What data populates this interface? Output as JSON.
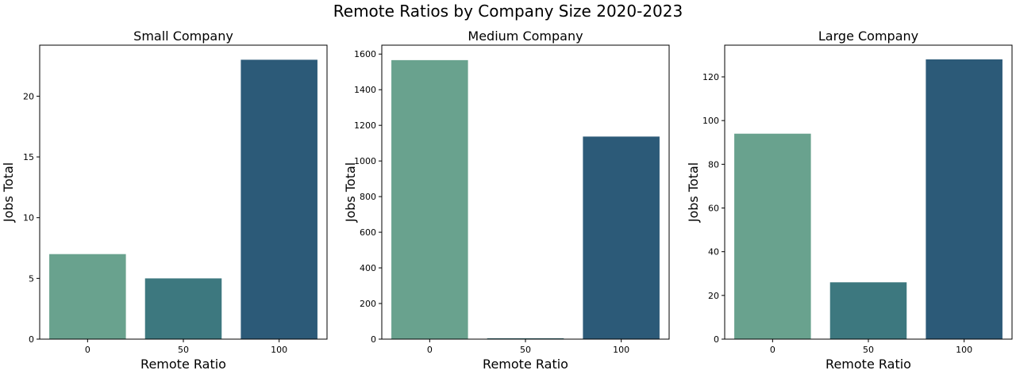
{
  "figure": {
    "title": "Remote Ratios by Company Size 2020-2023"
  },
  "colors": {
    "0": "#69a28e",
    "50": "#3d787f",
    "100": "#2c5a78"
  },
  "chart_data": [
    {
      "type": "bar",
      "title": "Small Company",
      "xlabel": "Remote Ratio",
      "ylabel": "Jobs Total",
      "categories": [
        "0",
        "50",
        "100"
      ],
      "values": [
        7,
        5,
        23
      ],
      "ylim": [
        0,
        24.2
      ],
      "yticks": [
        0,
        5,
        10,
        15,
        20
      ],
      "grid": false
    },
    {
      "type": "bar",
      "title": "Medium Company",
      "xlabel": "Remote Ratio",
      "ylabel": "Jobs Total",
      "categories": [
        "0",
        "50",
        "100"
      ],
      "values": [
        1566,
        5,
        1137
      ],
      "ylim": [
        0,
        1650
      ],
      "yticks": [
        0,
        200,
        400,
        600,
        800,
        1000,
        1200,
        1400,
        1600
      ],
      "grid": false
    },
    {
      "type": "bar",
      "title": "Large Company",
      "xlabel": "Remote Ratio",
      "ylabel": "Jobs Total",
      "categories": [
        "0",
        "50",
        "100"
      ],
      "values": [
        94,
        26,
        128
      ],
      "ylim": [
        0,
        134.5
      ],
      "yticks": [
        0,
        20,
        40,
        60,
        80,
        100,
        120
      ],
      "grid": false
    }
  ]
}
